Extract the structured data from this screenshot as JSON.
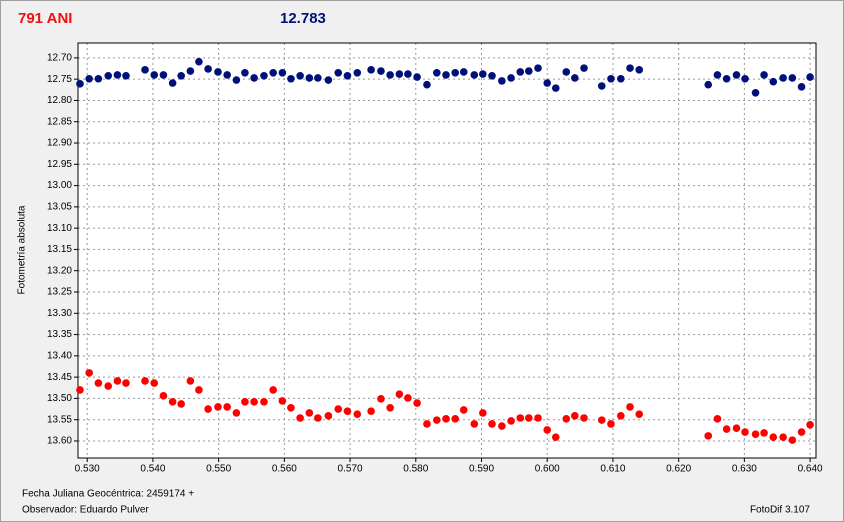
{
  "chart_data": {
    "type": "scatter",
    "title": "791 ANI",
    "subtitle": "12.783",
    "ylabel": "Fotometría absoluta",
    "footer_left": [
      "Fecha Juliana Geocéntrica: 2459174 +",
      "Observador: Eduardo Pulver"
    ],
    "footer_right": "FotoDif 3.107",
    "y_inverted": true,
    "grid": true,
    "xlim": [
      0.5286,
      0.6409
    ],
    "ylim": [
      12.665,
      13.64
    ],
    "xticks": [
      {
        "value": 0.53,
        "label": "0.530"
      },
      {
        "value": 0.54,
        "label": "0.540"
      },
      {
        "value": 0.55,
        "label": "0.550"
      },
      {
        "value": 0.56,
        "label": "0.560"
      },
      {
        "value": 0.57,
        "label": "0.570"
      },
      {
        "value": 0.58,
        "label": "0.580"
      },
      {
        "value": 0.59,
        "label": "0.590"
      },
      {
        "value": 0.6,
        "label": "0.600"
      },
      {
        "value": 0.61,
        "label": "0.610"
      },
      {
        "value": 0.62,
        "label": "0.620"
      },
      {
        "value": 0.63,
        "label": "0.630"
      },
      {
        "value": 0.64,
        "label": "0.640"
      }
    ],
    "yticks": [
      {
        "value": 12.7,
        "label": "12.70"
      },
      {
        "value": 12.75,
        "label": "12.75"
      },
      {
        "value": 12.8,
        "label": "12.80"
      },
      {
        "value": 12.85,
        "label": "12.85"
      },
      {
        "value": 12.9,
        "label": "12.90"
      },
      {
        "value": 12.95,
        "label": "12.95"
      },
      {
        "value": 13.0,
        "label": "13.00"
      },
      {
        "value": 13.05,
        "label": "13.05"
      },
      {
        "value": 13.1,
        "label": "13.10"
      },
      {
        "value": 13.15,
        "label": "13.15"
      },
      {
        "value": 13.2,
        "label": "13.20"
      },
      {
        "value": 13.25,
        "label": "13.25"
      },
      {
        "value": 13.3,
        "label": "13.30"
      },
      {
        "value": 13.35,
        "label": "13.35"
      },
      {
        "value": 13.4,
        "label": "13.40"
      },
      {
        "value": 13.45,
        "label": "13.45"
      },
      {
        "value": 13.5,
        "label": "13.50"
      },
      {
        "value": 13.55,
        "label": "13.55"
      },
      {
        "value": 13.6,
        "label": "13.60"
      }
    ],
    "x": [
      0.5289,
      0.5303,
      0.5317,
      0.5332,
      0.5346,
      0.5359,
      0.5388,
      0.5402,
      0.5416,
      0.543,
      0.5443,
      0.5457,
      0.547,
      0.5484,
      0.5499,
      0.5513,
      0.5527,
      0.554,
      0.5554,
      0.5569,
      0.5583,
      0.5597,
      0.561,
      0.5624,
      0.5638,
      0.5651,
      0.5667,
      0.5682,
      0.5696,
      0.5711,
      0.5732,
      0.5747,
      0.5761,
      0.5775,
      0.5788,
      0.5802,
      0.5817,
      0.5832,
      0.5846,
      0.586,
      0.5873,
      0.5889,
      0.5902,
      0.5916,
      0.5931,
      0.5945,
      0.5959,
      0.5972,
      0.5986,
      0.6,
      0.6013,
      0.6029,
      0.6042,
      0.6056,
      0.6083,
      0.6097,
      0.6112,
      0.6126,
      0.614,
      0.6245,
      0.6259,
      0.6273,
      0.6288,
      0.6301,
      0.6317,
      0.633,
      0.6344,
      0.6359,
      0.6373,
      0.6387,
      0.64
    ],
    "series": [
      {
        "color": "#00107a",
        "values": [
          12.761,
          12.749,
          12.749,
          12.742,
          12.74,
          12.742,
          12.728,
          12.74,
          12.74,
          12.759,
          12.742,
          12.731,
          12.709,
          12.726,
          12.733,
          12.74,
          12.752,
          12.735,
          12.747,
          12.742,
          12.735,
          12.735,
          12.749,
          12.742,
          12.747,
          12.747,
          12.752,
          12.735,
          12.742,
          12.735,
          12.728,
          12.731,
          12.74,
          12.738,
          12.738,
          12.745,
          12.763,
          12.735,
          12.74,
          12.735,
          12.733,
          12.74,
          12.738,
          12.742,
          12.754,
          12.747,
          12.733,
          12.731,
          12.724,
          12.759,
          12.771,
          12.733,
          12.747,
          12.724,
          12.766,
          12.749,
          12.749,
          12.724,
          12.728,
          12.763,
          12.74,
          12.749,
          12.74,
          12.749,
          12.782,
          12.74,
          12.756,
          12.747,
          12.747,
          12.768,
          12.745
        ]
      },
      {
        "color": "#ff0000",
        "values": [
          13.48,
          13.44,
          13.464,
          13.471,
          13.459,
          13.464,
          13.459,
          13.464,
          13.494,
          13.508,
          13.513,
          13.459,
          13.48,
          13.525,
          13.52,
          13.52,
          13.534,
          13.508,
          13.508,
          13.508,
          13.48,
          13.506,
          13.522,
          13.546,
          13.534,
          13.546,
          13.541,
          13.525,
          13.53,
          13.537,
          13.53,
          13.501,
          13.522,
          13.49,
          13.499,
          13.511,
          13.56,
          13.551,
          13.548,
          13.548,
          13.527,
          13.56,
          13.534,
          13.56,
          13.565,
          13.553,
          13.546,
          13.546,
          13.546,
          13.574,
          13.591,
          13.548,
          13.541,
          13.546,
          13.551,
          13.56,
          13.541,
          13.52,
          13.537,
          13.588,
          13.548,
          13.572,
          13.57,
          13.579,
          13.584,
          13.581,
          13.591,
          13.591,
          13.598,
          13.579,
          13.562
        ]
      }
    ]
  }
}
